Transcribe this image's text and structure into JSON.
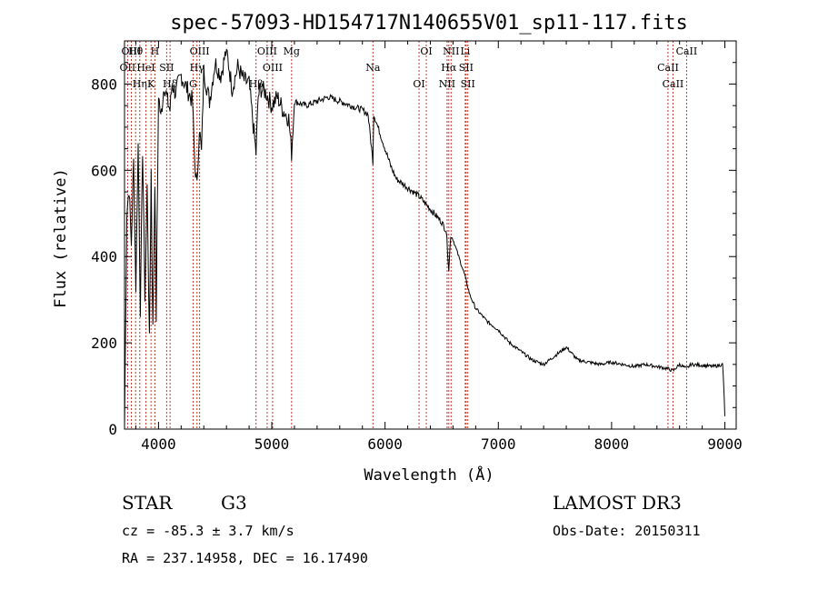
{
  "chart_data": {
    "type": "line",
    "title": "spec-57093-HD154717N140655V01_sp11-117.fits",
    "xlabel": "Wavelength (Å)",
    "ylabel": "Flux (relative)",
    "xlim": [
      3700,
      9100
    ],
    "ylim": [
      0,
      900
    ],
    "x_ticks": [
      4000,
      5000,
      6000,
      7000,
      8000,
      9000
    ],
    "y_ticks": [
      0,
      200,
      400,
      600,
      800
    ],
    "series": [
      {
        "name": "spectrum",
        "x": [
          3700,
          3720,
          3740,
          3760,
          3780,
          3800,
          3820,
          3840,
          3860,
          3880,
          3900,
          3920,
          3935,
          3950,
          3968,
          3980,
          4000,
          4020,
          4050,
          4080,
          4102,
          4120,
          4150,
          4200,
          4250,
          4300,
          4320,
          4340,
          4360,
          4380,
          4400,
          4450,
          4500,
          4550,
          4600,
          4650,
          4700,
          4750,
          4800,
          4861,
          4880,
          4900,
          4950,
          5000,
          5050,
          5100,
          5150,
          5175,
          5200,
          5300,
          5400,
          5500,
          5600,
          5700,
          5800,
          5850,
          5893,
          5900,
          5950,
          6000,
          6050,
          6100,
          6150,
          6200,
          6300,
          6400,
          6500,
          6540,
          6563,
          6580,
          6600,
          6650,
          6700,
          6750,
          6800,
          6900,
          7000,
          7100,
          7200,
          7300,
          7400,
          7500,
          7600,
          7700,
          7800,
          7900,
          8000,
          8100,
          8200,
          8300,
          8400,
          8498,
          8542,
          8600,
          8662,
          8700,
          8800,
          8900,
          8980,
          8990,
          9000
        ],
        "y": [
          0,
          500,
          560,
          430,
          620,
          330,
          660,
          280,
          650,
          310,
          560,
          200,
          600,
          230,
          580,
          260,
          780,
          720,
          800,
          760,
          740,
          800,
          780,
          820,
          790,
          760,
          620,
          560,
          700,
          640,
          830,
          760,
          850,
          820,
          880,
          790,
          840,
          810,
          800,
          640,
          770,
          790,
          780,
          750,
          770,
          740,
          720,
          640,
          760,
          750,
          760,
          770,
          760,
          750,
          740,
          730,
          620,
          730,
          690,
          650,
          610,
          580,
          570,
          560,
          540,
          510,
          480,
          460,
          370,
          450,
          440,
          400,
          360,
          310,
          280,
          250,
          230,
          200,
          180,
          160,
          150,
          170,
          190,
          160,
          155,
          150,
          155,
          150,
          145,
          150,
          145,
          140,
          135,
          150,
          140,
          150,
          148,
          145,
          150,
          100,
          30
        ]
      }
    ],
    "spectral_lines": [
      {
        "name": "Hθ",
        "wavelength": 3798
      },
      {
        "name": "OII",
        "wavelength": 3727
      },
      {
        "name": "Hη",
        "wavelength": 3835
      },
      {
        "name": "OIII",
        "wavelength": 3760
      },
      {
        "name": "HeI",
        "wavelength": 3889
      },
      {
        "name": "K",
        "wavelength": 3934
      },
      {
        "name": "H",
        "wavelength": 3968
      },
      {
        "name": "SII",
        "wavelength": 4072
      },
      {
        "name": "Hδ",
        "wavelength": 4102
      },
      {
        "name": "OIII",
        "wavelength": 4363
      },
      {
        "name": "Hγ",
        "wavelength": 4340
      },
      {
        "name": "G",
        "wavelength": 4305
      },
      {
        "name": "OIII",
        "wavelength": 4959
      },
      {
        "name": "OIII",
        "wavelength": 5007
      },
      {
        "name": "Hβ",
        "wavelength": 4861
      },
      {
        "name": "Mg",
        "wavelength": 5175
      },
      {
        "name": "Na",
        "wavelength": 5893
      },
      {
        "name": "OI",
        "wavelength": 6300
      },
      {
        "name": "OI",
        "wavelength": 6364
      },
      {
        "name": "Hα",
        "wavelength": 6563
      },
      {
        "name": "NII",
        "wavelength": 6548
      },
      {
        "name": "NII",
        "wavelength": 6583
      },
      {
        "name": "SII",
        "wavelength": 6716
      },
      {
        "name": "SII",
        "wavelength": 6731
      },
      {
        "name": "Li",
        "wavelength": 6708
      },
      {
        "name": "CaII",
        "wavelength": 8498
      },
      {
        "name": "CaII",
        "wavelength": 8542
      },
      {
        "name": "CaII",
        "wavelength": 8662
      }
    ],
    "legend": "none",
    "grid": false
  },
  "footer": {
    "object_class": "STAR",
    "subclass": "G3",
    "survey": "LAMOST DR3",
    "redshift": "cz = -85.3 ± 3.7 km/s",
    "obs_date": "Obs-Date: 20150311",
    "coords": "RA = 237.14958, DEC =  16.17490"
  },
  "colors": {
    "spectrum": "#000000",
    "line_markers": "#c0392b",
    "axes": "#000000"
  }
}
